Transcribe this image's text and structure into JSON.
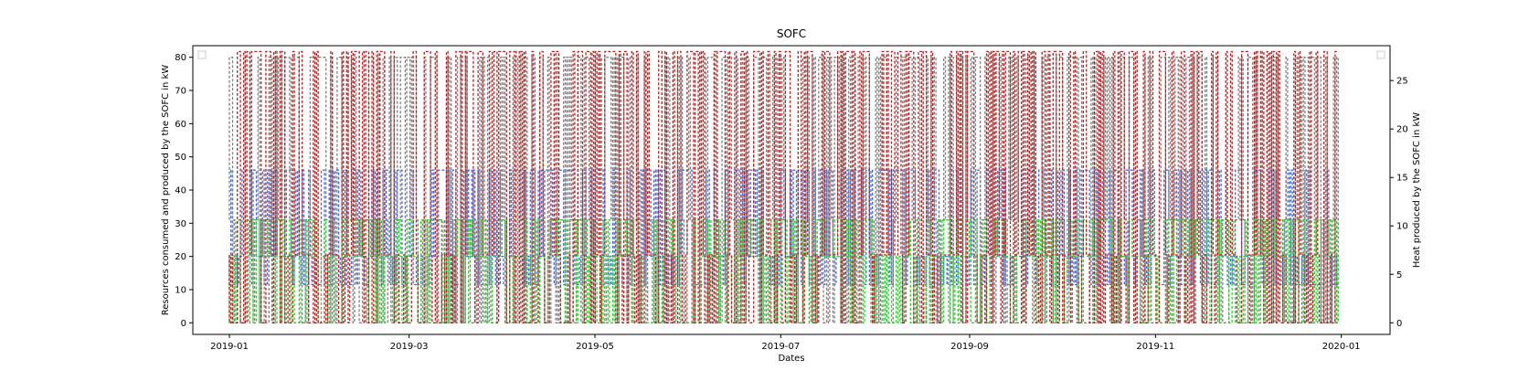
{
  "chart_data": {
    "type": "line",
    "title": "SOFC",
    "xlabel": "Dates",
    "ylabel_left": "Resources consumed and produced by the SOFC in kW",
    "ylabel_right": "Heat produced by the SOFC in kW",
    "x_range": [
      "2018-12-20",
      "2020-01-17"
    ],
    "ylim_left": [
      -3.5,
      83.5
    ],
    "ylim_right": [
      -1.2,
      28.6
    ],
    "x_ticks": [
      "2019-01",
      "2019-03",
      "2019-05",
      "2019-07",
      "2019-09",
      "2019-11",
      "2020-01"
    ],
    "y_ticks_left": [
      0,
      10,
      20,
      30,
      40,
      50,
      60,
      70,
      80
    ],
    "y_ticks_right": [
      0,
      5,
      10,
      15,
      20,
      25
    ],
    "grid": false,
    "legend": [
      "top-left",
      "top-right"
    ],
    "series": [
      {
        "axis": "left",
        "color": "#4169e1",
        "style": "dashed",
        "low": 11.5,
        "high": 46,
        "typical_on": 20
      },
      {
        "axis": "left",
        "color": "#808080",
        "style": "dashed",
        "low": 0,
        "high": 80,
        "typical_on": 31
      },
      {
        "axis": "left",
        "color": "#32cd32",
        "style": "dashed",
        "low": 0,
        "high": 31,
        "typical_on": 20
      },
      {
        "axis": "right",
        "color": "#b22222",
        "style": "dashed",
        "low": 0,
        "high": 28,
        "typical_on": 7
      }
    ]
  }
}
